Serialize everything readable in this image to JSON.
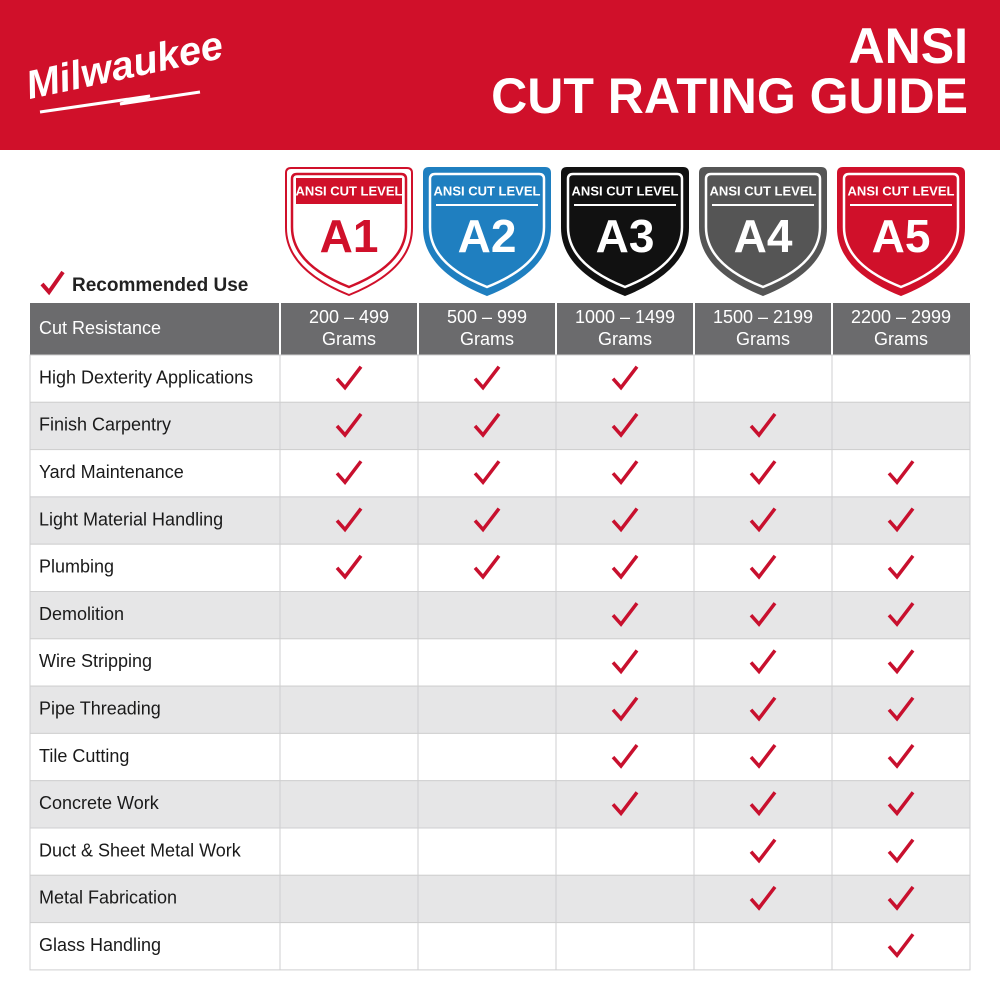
{
  "header": {
    "brand": "Milwaukee",
    "title_line1": "ANSI",
    "title_line2": "CUT RATING GUIDE"
  },
  "legend": {
    "label": "Recommended Use"
  },
  "table": {
    "header_label": "Cut Resistance",
    "columns": [
      {
        "level_label": "ANSI CUT LEVEL",
        "level": "A1",
        "range": "200 – 499",
        "unit": "Grams",
        "color": "#ffffff",
        "accent": "#d0102a"
      },
      {
        "level_label": "ANSI CUT LEVEL",
        "level": "A2",
        "range": "500 – 999",
        "unit": "Grams",
        "color": "#1f7fc0",
        "accent": "#ffffff"
      },
      {
        "level_label": "ANSI CUT LEVEL",
        "level": "A3",
        "range": "1000 – 1499",
        "unit": "Grams",
        "color": "#111111",
        "accent": "#ffffff"
      },
      {
        "level_label": "ANSI CUT LEVEL",
        "level": "A4",
        "range": "1500 – 2199",
        "unit": "Grams",
        "color": "#555555",
        "accent": "#ffffff"
      },
      {
        "level_label": "ANSI CUT LEVEL",
        "level": "A5",
        "range": "2200 – 2999",
        "unit": "Grams",
        "color": "#d0102a",
        "accent": "#ffffff"
      }
    ],
    "rows": [
      {
        "label": "High Dexterity Applications",
        "recommended": [
          true,
          true,
          true,
          false,
          false
        ]
      },
      {
        "label": "Finish Carpentry",
        "recommended": [
          true,
          true,
          true,
          true,
          false
        ]
      },
      {
        "label": "Yard Maintenance",
        "recommended": [
          true,
          true,
          true,
          true,
          true
        ]
      },
      {
        "label": "Light Material Handling",
        "recommended": [
          true,
          true,
          true,
          true,
          true
        ]
      },
      {
        "label": "Plumbing",
        "recommended": [
          true,
          true,
          true,
          true,
          true
        ]
      },
      {
        "label": "Demolition",
        "recommended": [
          false,
          false,
          true,
          true,
          true
        ]
      },
      {
        "label": "Wire Stripping",
        "recommended": [
          false,
          false,
          true,
          true,
          true
        ]
      },
      {
        "label": "Pipe Threading",
        "recommended": [
          false,
          false,
          true,
          true,
          true
        ]
      },
      {
        "label": "Tile Cutting",
        "recommended": [
          false,
          false,
          true,
          true,
          true
        ]
      },
      {
        "label": "Concrete Work",
        "recommended": [
          false,
          false,
          true,
          true,
          true
        ]
      },
      {
        "label": "Duct & Sheet Metal Work",
        "recommended": [
          false,
          false,
          false,
          true,
          true
        ]
      },
      {
        "label": "Metal Fabrication",
        "recommended": [
          false,
          false,
          false,
          true,
          true
        ]
      },
      {
        "label": "Glass Handling",
        "recommended": [
          false,
          false,
          false,
          false,
          true
        ]
      }
    ]
  }
}
